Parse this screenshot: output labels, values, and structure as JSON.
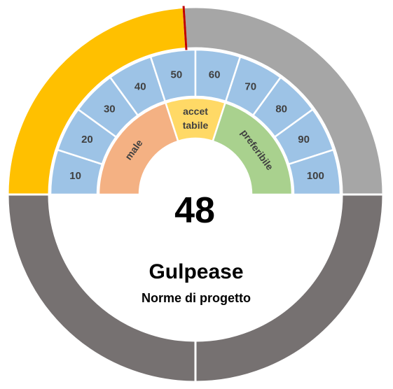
{
  "chart_data": {
    "type": "gauge",
    "value": 48,
    "value_label": "48",
    "title": "Gulpease",
    "subtitle": "Norme di progetto",
    "range": [
      0,
      100
    ],
    "ticks": [
      "10",
      "20",
      "30",
      "40",
      "50",
      "60",
      "70",
      "80",
      "90",
      "100"
    ],
    "bands": [
      {
        "label": "male",
        "from": 0,
        "to": 40,
        "color": "#F4B183"
      },
      {
        "label": "accet tabile",
        "lines": [
          "accet",
          "tabile"
        ],
        "from": 40,
        "to": 60,
        "color": "#FFD966"
      },
      {
        "label": "preferibile",
        "from": 60,
        "to": 100,
        "color": "#A9D18E"
      }
    ],
    "colors": {
      "fill": "#FFC000",
      "remaining": "#A6A6A6",
      "lower_ring": "#767171",
      "tick_segments": "#9DC3E6",
      "needle": "#C00000"
    }
  }
}
